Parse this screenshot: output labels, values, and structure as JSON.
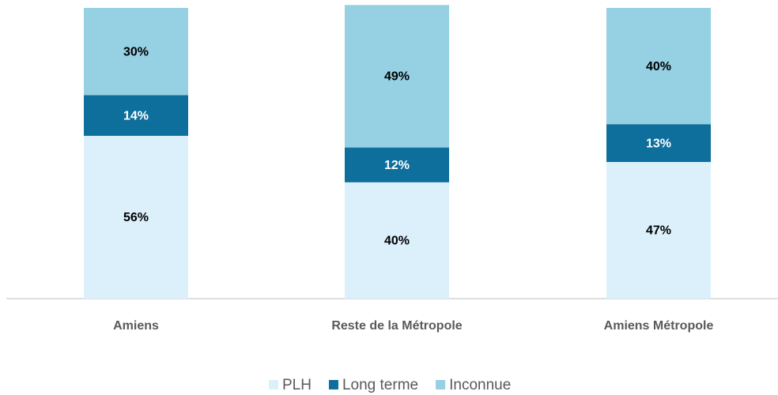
{
  "chart_data": {
    "type": "stacked_bar",
    "categories": [
      "Amiens",
      "Reste de la Métropole",
      "Amiens Métropole"
    ],
    "series": [
      {
        "name": "PLH",
        "color": "#dbf0fb",
        "values": [
          56,
          40,
          47
        ],
        "value_labels": [
          "56%",
          "40%",
          "47%"
        ]
      },
      {
        "name": "Long terme",
        "color": "#0e6e9c",
        "values": [
          14,
          12,
          13
        ],
        "value_labels": [
          "14%",
          "12%",
          "13%"
        ]
      },
      {
        "name": "Inconnue",
        "color": "#95d0e3",
        "values": [
          30,
          49,
          40
        ],
        "value_labels": [
          "30%",
          "49%",
          "40%"
        ]
      }
    ],
    "legend": "bottom"
  }
}
